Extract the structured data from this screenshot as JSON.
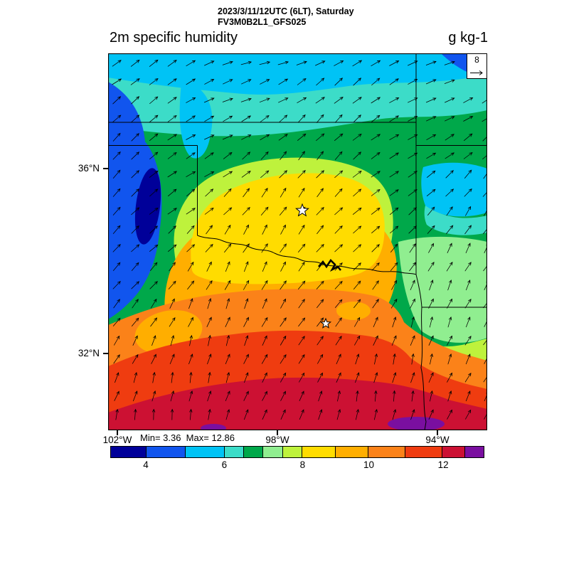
{
  "header": {
    "line1": "2023/3/11/12UTC (6LT), Saturday",
    "line2": "FV3M0B2L1_GFS025"
  },
  "title": {
    "text": "2m specific humidity",
    "units": "g kg-1"
  },
  "map": {
    "stats": "Min= 3.36  Max= 12.86",
    "ref_vector_label": "8",
    "lat_labels": [
      {
        "text": "36°N"
      },
      {
        "text": "32°N"
      }
    ],
    "lon_labels": [
      {
        "text": "102°W"
      },
      {
        "text": "98°W"
      },
      {
        "text": "94°W"
      }
    ],
    "wind": {
      "spacing": 26,
      "length": 15
    }
  },
  "colorbar": {
    "segments": [
      {
        "color": "#000099",
        "width": 9.5
      },
      {
        "color": "#1155ee",
        "width": 10.5
      },
      {
        "color": "#00c3f5",
        "width": 10.5
      },
      {
        "color": "#3cdcc8",
        "width": 5.2
      },
      {
        "color": "#00a84a",
        "width": 5.2
      },
      {
        "color": "#90ee90",
        "width": 5.3
      },
      {
        "color": "#bef23c",
        "width": 5.2
      },
      {
        "color": "#ffdc00",
        "width": 8.9
      },
      {
        "color": "#ffae00",
        "width": 8.8
      },
      {
        "color": "#fb8219",
        "width": 9.95
      },
      {
        "color": "#ef3c10",
        "width": 9.95
      },
      {
        "color": "#cc1133",
        "width": 6.0
      },
      {
        "color": "#7a0fa0",
        "width": 5.0
      }
    ],
    "ticks": [
      {
        "label": "4",
        "pos": 9.5
      },
      {
        "label": "6",
        "pos": 30.5
      },
      {
        "label": "8",
        "pos": 51.4
      },
      {
        "label": "10",
        "pos": 69.1
      },
      {
        "label": "12",
        "pos": 89.0
      }
    ]
  },
  "chart_data": {
    "type": "heatmap",
    "title": "2m specific humidity",
    "units": "g kg-1",
    "valid_time": "2023/3/11/12UTC (6LT), Saturday",
    "model": "FV3M0B2L1_GFS025",
    "min": 3.36,
    "max": 12.86,
    "wind_reference_vector": 8,
    "lon_ticks": [
      "102°W",
      "98°W",
      "94°W"
    ],
    "lat_ticks": [
      "36°N",
      "32°N"
    ],
    "colorbar_ticks": [
      4,
      6,
      8,
      10,
      12
    ],
    "colorbar_colors": [
      "#000099",
      "#1155ee",
      "#00c3f5",
      "#3cdcc8",
      "#00a84a",
      "#90ee90",
      "#bef23c",
      "#ffdc00",
      "#ffae00",
      "#fb8219",
      "#ef3c10",
      "#cc1133",
      "#7a0fa0"
    ],
    "field_sample_g_per_kg": {
      "lons_deg_w": [
        102,
        100,
        98,
        96,
        94
      ],
      "lats_deg_n": [
        38,
        36,
        34,
        32,
        30.5
      ],
      "values": [
        [
          5.5,
          5.5,
          5.0,
          5.0,
          5.0
        ],
        [
          4.0,
          6.5,
          7.5,
          7.0,
          6.0
        ],
        [
          9.5,
          9.0,
          8.5,
          9.5,
          7.5
        ],
        [
          11.0,
          11.0,
          11.5,
          11.0,
          9.0
        ],
        [
          12.0,
          12.5,
          12.5,
          13.0,
          11.5
        ]
      ]
    }
  }
}
